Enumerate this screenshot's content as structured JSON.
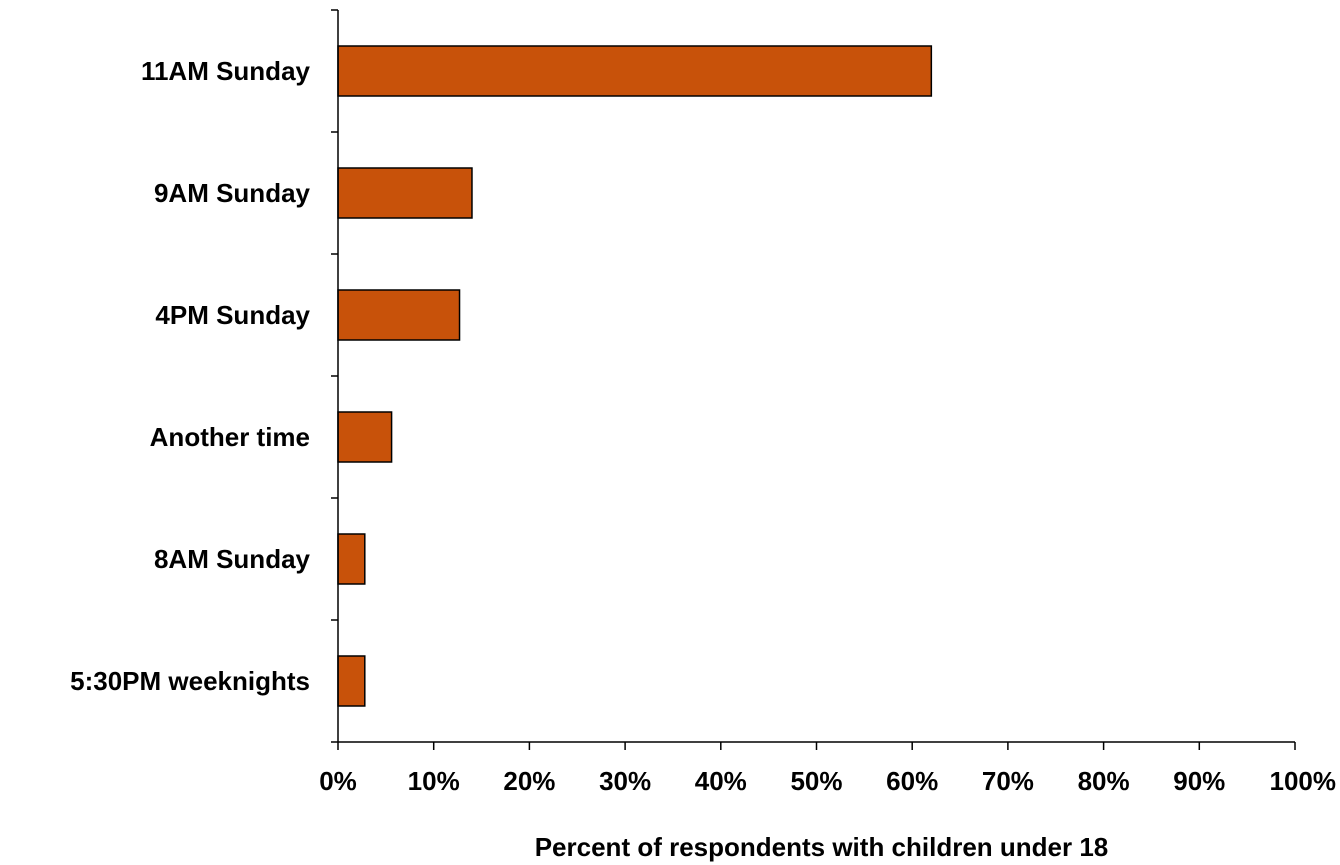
{
  "chart_data": {
    "type": "bar",
    "orientation": "horizontal",
    "categories": [
      "11AM Sunday",
      "9AM Sunday",
      "4PM Sunday",
      "Another time",
      "8AM Sunday",
      "5:30PM weeknights"
    ],
    "values": [
      62,
      14,
      12.7,
      5.6,
      2.8,
      2.8
    ],
    "xlabel": "Percent of respondents with children under 18",
    "ylabel": "",
    "xlim": [
      0,
      100
    ],
    "xticks": [
      0,
      10,
      20,
      30,
      40,
      50,
      60,
      70,
      80,
      90,
      100
    ],
    "xtick_labels": [
      "0%",
      "10%",
      "20%",
      "30%",
      "40%",
      "50%",
      "60%",
      "70%",
      "80%",
      "90%",
      "100%"
    ],
    "grid": false,
    "legend": "none",
    "bar_color": "#C8520A",
    "bar_edge_color": "#000000"
  }
}
